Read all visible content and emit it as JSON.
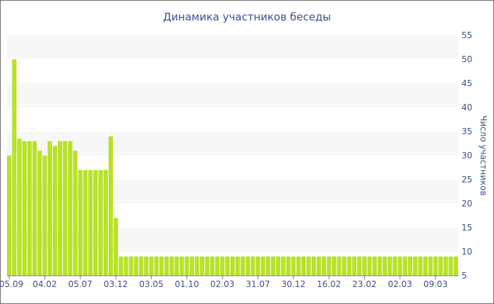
{
  "chart_data": {
    "type": "bar",
    "title": "Динамика участников беседы",
    "xlabel": "",
    "ylabel": "Число участников",
    "ylim": [
      5,
      55
    ],
    "yticks": [
      5,
      10,
      15,
      20,
      25,
      30,
      35,
      40,
      45,
      50,
      55
    ],
    "y_axis_side": "right",
    "grid": "alternating horizontal bands",
    "bar_color": "#b8e22a",
    "band_color": "#f7f7f7",
    "text_color": "#3e4f8f",
    "x_tick_labels": [
      "05.09",
      "04.02",
      "05.07",
      "03.12",
      "03.05",
      "01.10",
      "02.03",
      "31.07",
      "30.12",
      "16.02",
      "23.02",
      "02.03",
      "09.03"
    ],
    "x_tick_positions": [
      0,
      7,
      14,
      21,
      28,
      35,
      42,
      49,
      56,
      63,
      70,
      77,
      84
    ],
    "values": [
      30,
      50,
      33.5,
      33,
      33,
      33,
      31,
      30,
      33,
      32,
      33,
      33,
      33,
      31,
      27,
      27,
      27,
      27,
      27,
      27,
      34,
      17,
      9,
      9,
      9,
      9,
      9,
      9,
      9,
      9,
      9,
      9,
      9,
      9,
      9,
      9,
      9,
      9,
      9,
      9,
      9,
      9,
      9,
      9,
      9,
      9,
      9,
      9,
      9,
      9,
      9,
      9,
      9,
      9,
      9,
      9,
      9,
      9,
      9,
      9,
      9,
      9,
      9,
      9,
      9,
      9,
      9,
      9,
      9,
      9,
      9,
      9,
      9,
      9,
      9,
      9,
      9,
      9,
      9,
      9,
      9,
      9,
      9,
      9,
      9,
      9,
      9,
      9,
      9
    ]
  }
}
